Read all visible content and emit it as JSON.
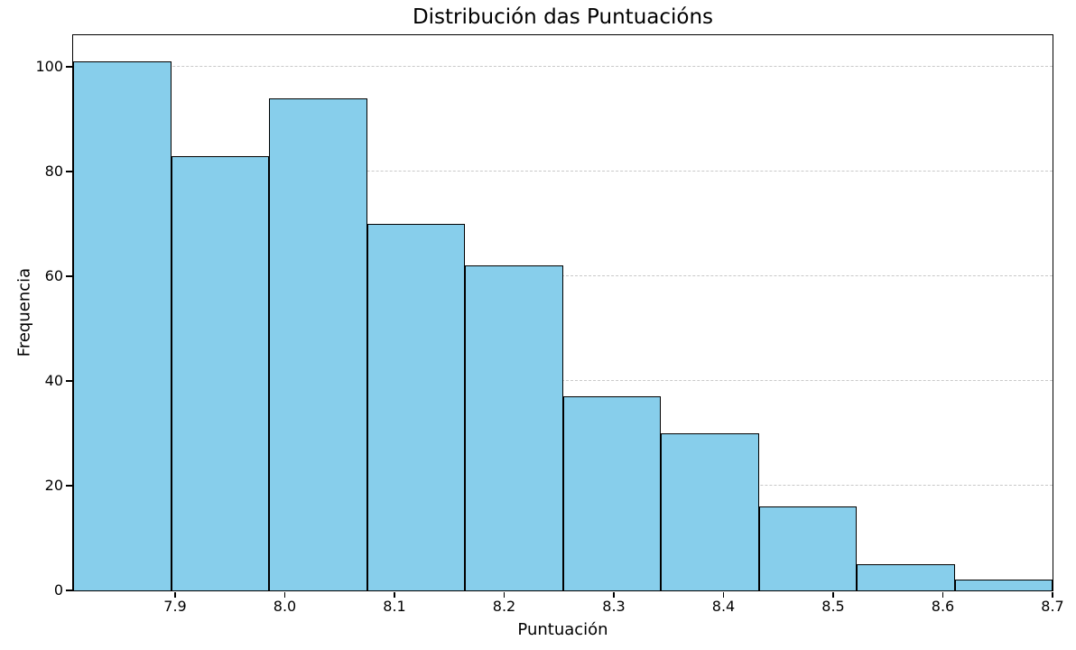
{
  "chart_data": {
    "type": "bar",
    "subtype": "histogram",
    "title": "Distribución das Puntuacións",
    "xlabel": "Puntuación",
    "ylabel": "Frequencia",
    "values": [
      101,
      83,
      94,
      70,
      62,
      37,
      30,
      16,
      5,
      2
    ],
    "n_bins": 10,
    "xlim": [
      7.807,
      8.7
    ],
    "bin_width": 0.0893,
    "ylim": [
      0,
      106.05
    ],
    "x_tick_values": [
      7.9,
      8.0,
      8.1,
      8.2,
      8.3,
      8.4,
      8.5,
      8.6,
      8.7
    ],
    "x_tick_labels": [
      "7.9",
      "8.0",
      "8.1",
      "8.2",
      "8.3",
      "8.4",
      "8.5",
      "8.6",
      "8.7"
    ],
    "y_tick_values": [
      0,
      20,
      40,
      60,
      80,
      100
    ],
    "y_tick_labels": [
      "0",
      "20",
      "40",
      "60",
      "80",
      "100"
    ],
    "y_gridline_values": [
      20,
      40,
      60,
      80,
      100
    ],
    "grid": "horizontal-dashed",
    "legend": "none",
    "bar_color": "#87CEEB",
    "bar_edge_color": "#000000",
    "grid_color": "#c9c9c9",
    "axis_color": "#000000",
    "background_color": "#ffffff"
  }
}
